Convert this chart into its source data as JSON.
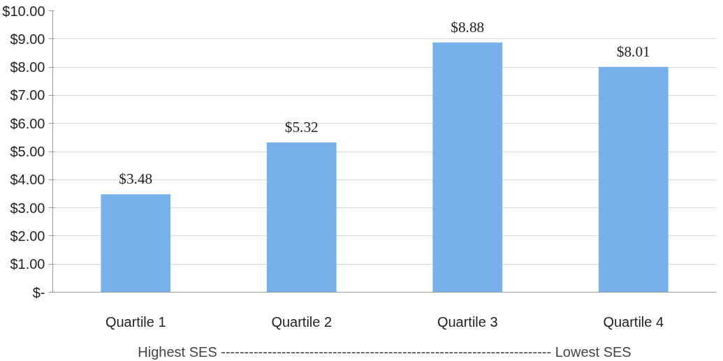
{
  "chart_data": {
    "type": "bar",
    "categories": [
      "Quartile 1",
      "Quartile 2",
      "Quartile 3",
      "Quartile 4"
    ],
    "values": [
      3.48,
      5.32,
      8.88,
      8.01
    ],
    "value_labels": [
      "$3.48",
      "$5.32",
      "$8.88",
      "$8.01"
    ],
    "color": "#78b0ec",
    "xlabel": "Highest SES ----------------------------------------------------------------------- Lowest SES",
    "ylim": [
      0,
      10
    ],
    "yticks": [
      {
        "value": 0,
        "label": "$-"
      },
      {
        "value": 1,
        "label": "$1.00"
      },
      {
        "value": 2,
        "label": "$2.00"
      },
      {
        "value": 3,
        "label": "$3.00"
      },
      {
        "value": 4,
        "label": "$4.00"
      },
      {
        "value": 5,
        "label": "$5.00"
      },
      {
        "value": 6,
        "label": "$6.00"
      },
      {
        "value": 7,
        "label": "$7.00"
      },
      {
        "value": 8,
        "label": "$8.00"
      },
      {
        "value": 9,
        "label": "$9.00"
      },
      {
        "value": 10,
        "label": "$10.00"
      }
    ],
    "grid": "y"
  }
}
